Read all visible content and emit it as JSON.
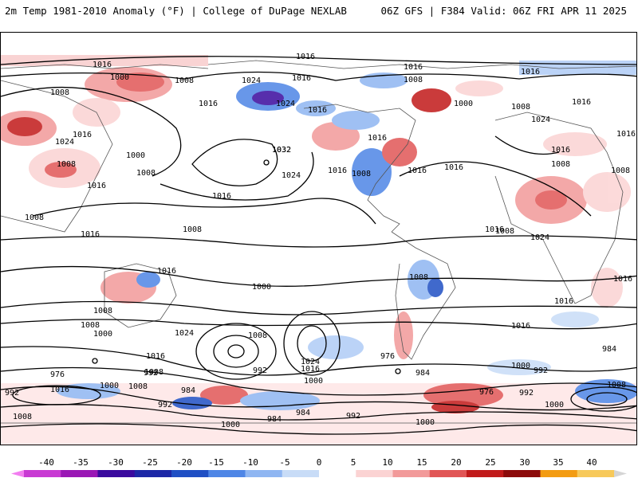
{
  "header": {
    "title_left": "2m Temp 1981-2010 Anomaly (°F) | College of DuPage NEXLAB",
    "title_right": "06Z GFS | F384 Valid: 06Z FRI APR 11 2025"
  },
  "map": {
    "variable": "2m temperature anomaly",
    "contour_labels": [
      "1016",
      "1016",
      "1016",
      "1016",
      "1000",
      "1008",
      "1008",
      "1024",
      "1016",
      "1008",
      "1000",
      "1008",
      "1016",
      "1024",
      "1016",
      "1016",
      "1024",
      "1016",
      "1024",
      "1016",
      "1000",
      "1008",
      "1032",
      "1016",
      "1016",
      "1008",
      "1016",
      "1008",
      "1024",
      "1008",
      "1008",
      "1016",
      "1016",
      "1008",
      "1016",
      "1008",
      "1016",
      "1016",
      "1024",
      "1016",
      "1008",
      "1000",
      "1016",
      "1008",
      "1016",
      "1008",
      "1016",
      "1024",
      "1032",
      "1008",
      "1000",
      "1016",
      "976",
      "984",
      "992",
      "992",
      "1008",
      "984",
      "992",
      "1000",
      "992",
      "1000",
      "1016",
      "976",
      "1024",
      "1016",
      "1000",
      "1008",
      "1008",
      "1000",
      "976",
      "992",
      "984",
      "984",
      "992",
      "1008",
      "992",
      "1000",
      "984",
      "1000",
      "1016",
      "1008"
    ]
  },
  "colorbar": {
    "labels": [
      "-40",
      "-35",
      "-30",
      "-25",
      "-20",
      "-15",
      "-10",
      "-5",
      "0",
      "5",
      "10",
      "15",
      "20",
      "25",
      "30",
      "35",
      "40"
    ],
    "colors": [
      "#f27ef0",
      "#c83ad3",
      "#9a17b5",
      "#3a0a9e",
      "#1c27a6",
      "#1f4fc4",
      "#4e86e6",
      "#8fb6f2",
      "#c8dcf7",
      "#ffffff",
      "#fbd3d3",
      "#f29a9a",
      "#e15656",
      "#c11a1a",
      "#8c0b0b",
      "#f39c12",
      "#f7c95a",
      "#d5d5d5"
    ]
  }
}
